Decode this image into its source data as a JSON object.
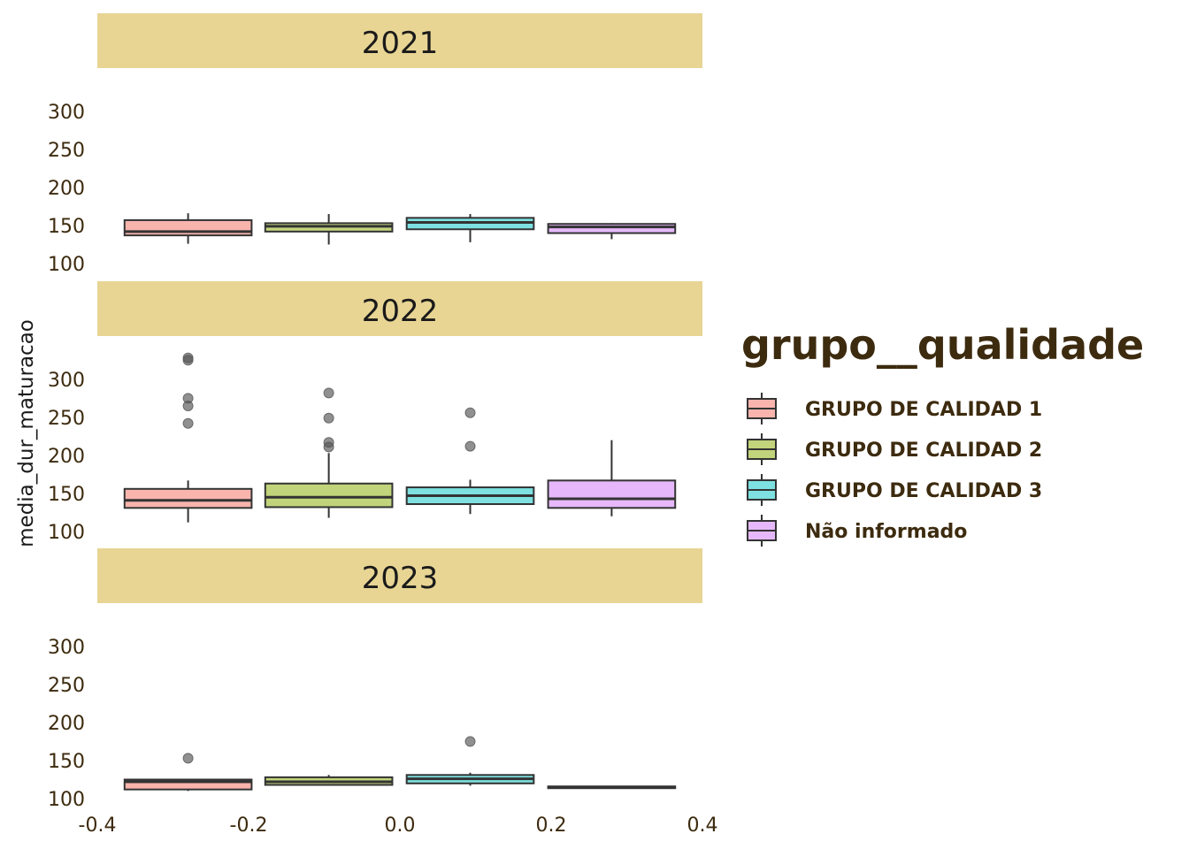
{
  "chart_data": {
    "type": "box",
    "ylabel": "media_dur_maturacao",
    "xlabel": "",
    "x_ticks": [
      "-0.4",
      "-0.2",
      "0.0",
      "0.2",
      "0.4"
    ],
    "xlim": [
      -0.4,
      0.4
    ],
    "ylim": [
      100,
      330
    ],
    "y_ticks": [
      100,
      150,
      200,
      250,
      300
    ],
    "legend": {
      "title": "grupo__qualidade",
      "position": "right",
      "items": [
        {
          "label": "GRUPO DE CALIDAD 1",
          "color": "#f8b4ad"
        },
        {
          "label": "GRUPO DE CALIDAD 2",
          "color": "#c1d47b"
        },
        {
          "label": "GRUPO DE CALIDAD 3",
          "color": "#7ee0e0"
        },
        {
          "label": "Não informado",
          "color": "#e6b8fb"
        }
      ]
    },
    "facets": [
      {
        "label": "2021",
        "boxes": [
          {
            "group": "GRUPO DE CALIDAD 1",
            "x": -0.28,
            "min": 126,
            "q1": 137,
            "median": 142,
            "q3": 157,
            "max": 166,
            "outliers": []
          },
          {
            "group": "GRUPO DE CALIDAD 2",
            "x": -0.094,
            "min": 125,
            "q1": 142,
            "median": 149,
            "q3": 153,
            "max": 165,
            "outliers": []
          },
          {
            "group": "GRUPO DE CALIDAD 3",
            "x": 0.093,
            "min": 128,
            "q1": 145,
            "median": 154,
            "q3": 160,
            "max": 165,
            "outliers": []
          },
          {
            "group": "Não informado",
            "x": 0.28,
            "min": 132,
            "q1": 140,
            "median": 148,
            "q3": 152,
            "max": 153,
            "outliers": []
          }
        ]
      },
      {
        "label": "2022",
        "boxes": [
          {
            "group": "GRUPO DE CALIDAD 1",
            "x": -0.28,
            "min": 112,
            "q1": 131,
            "median": 141,
            "q3": 156,
            "max": 167,
            "outliers": [
              242,
              265,
              275,
              325,
              328
            ]
          },
          {
            "group": "GRUPO DE CALIDAD 2",
            "x": -0.094,
            "min": 118,
            "q1": 132,
            "median": 145,
            "q3": 163,
            "max": 203,
            "outliers": [
              211,
              217,
              249,
              282
            ]
          },
          {
            "group": "GRUPO DE CALIDAD 3",
            "x": 0.093,
            "min": 123,
            "q1": 136,
            "median": 147,
            "q3": 158,
            "max": 168,
            "outliers": [
              212,
              256
            ]
          },
          {
            "group": "Não informado",
            "x": 0.28,
            "min": 120,
            "q1": 131,
            "median": 143,
            "q3": 167,
            "max": 220,
            "outliers": []
          }
        ]
      },
      {
        "label": "2023",
        "boxes": [
          {
            "group": "GRUPO DE CALIDAD 1",
            "x": -0.28,
            "min": 110,
            "q1": 112,
            "median": 122,
            "q3": 125,
            "max": 126,
            "outliers": [
              153
            ]
          },
          {
            "group": "GRUPO DE CALIDAD 2",
            "x": -0.094,
            "min": 117,
            "q1": 118,
            "median": 122,
            "q3": 128,
            "max": 131,
            "outliers": []
          },
          {
            "group": "GRUPO DE CALIDAD 3",
            "x": 0.093,
            "min": 117,
            "q1": 120,
            "median": 126,
            "q3": 131,
            "max": 134,
            "outliers": [
              175
            ]
          },
          {
            "group": "Não informado",
            "x": 0.28,
            "min": 114,
            "q1": 114,
            "median": 115,
            "q3": 116,
            "max": 116,
            "outliers": []
          }
        ]
      }
    ]
  }
}
